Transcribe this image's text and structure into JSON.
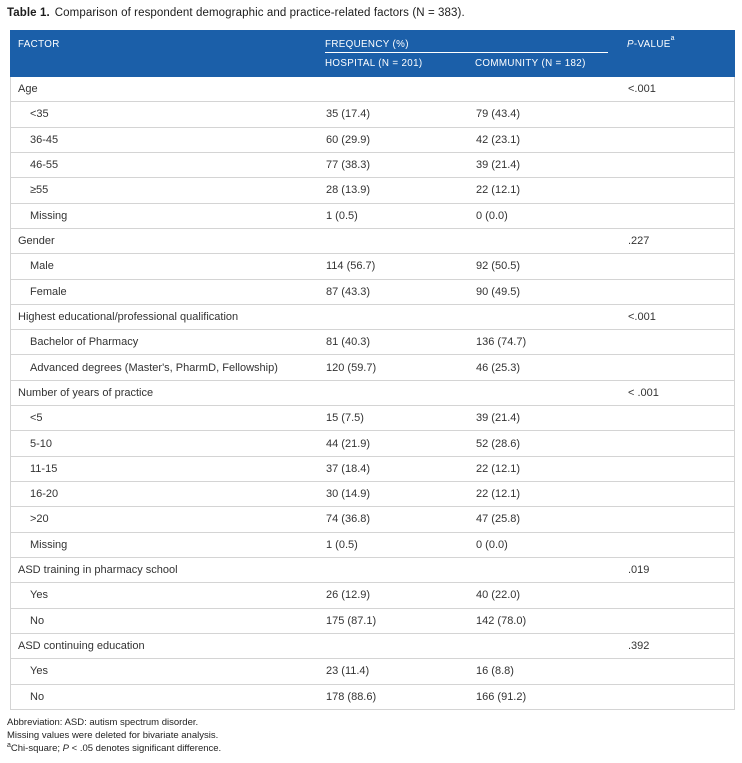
{
  "caption": {
    "label": "Table 1.",
    "text": "Comparison of respondent demographic and practice-related factors (N = 383)."
  },
  "table": {
    "header": {
      "factor": "FACTOR",
      "frequency_group": "FREQUENCY (%)",
      "hospital": "HOSPITAL (N = 201)",
      "community": "COMMUNITY (N = 182)",
      "pvalue_italic": "P",
      "pvalue_rest": "-VALUE",
      "pvalue_sup": "a"
    },
    "rows": [
      {
        "factor": "Age",
        "indent": false,
        "hospital": "",
        "community": "",
        "pvalue": "<.001"
      },
      {
        "factor": "<35",
        "indent": true,
        "hospital": "35 (17.4)",
        "community": "79 (43.4)",
        "pvalue": ""
      },
      {
        "factor": "36-45",
        "indent": true,
        "hospital": "60 (29.9)",
        "community": "42 (23.1)",
        "pvalue": ""
      },
      {
        "factor": "46-55",
        "indent": true,
        "hospital": "77 (38.3)",
        "community": "39 (21.4)",
        "pvalue": ""
      },
      {
        "factor": "≥55",
        "indent": true,
        "hospital": "28 (13.9)",
        "community": "22 (12.1)",
        "pvalue": ""
      },
      {
        "factor": "Missing",
        "indent": true,
        "hospital": "1 (0.5)",
        "community": "0 (0.0)",
        "pvalue": ""
      },
      {
        "factor": "Gender",
        "indent": false,
        "hospital": "",
        "community": "",
        "pvalue": ".227"
      },
      {
        "factor": "Male",
        "indent": true,
        "hospital": "114 (56.7)",
        "community": "92 (50.5)",
        "pvalue": ""
      },
      {
        "factor": "Female",
        "indent": true,
        "hospital": "87 (43.3)",
        "community": "90 (49.5)",
        "pvalue": ""
      },
      {
        "factor": "Highest educational/professional qualification",
        "indent": false,
        "hospital": "",
        "community": "",
        "pvalue": "<.001"
      },
      {
        "factor": "Bachelor of Pharmacy",
        "indent": true,
        "hospital": "81 (40.3)",
        "community": "136 (74.7)",
        "pvalue": ""
      },
      {
        "factor": "Advanced degrees (Master's, PharmD, Fellowship)",
        "indent": true,
        "hospital": "120 (59.7)",
        "community": "46 (25.3)",
        "pvalue": ""
      },
      {
        "factor": "Number of years of practice",
        "indent": false,
        "hospital": "",
        "community": "",
        "pvalue": "< .001"
      },
      {
        "factor": "<5",
        "indent": true,
        "hospital": "15 (7.5)",
        "community": "39 (21.4)",
        "pvalue": ""
      },
      {
        "factor": "5-10",
        "indent": true,
        "hospital": "44 (21.9)",
        "community": "52 (28.6)",
        "pvalue": ""
      },
      {
        "factor": "11-15",
        "indent": true,
        "hospital": "37 (18.4)",
        "community": "22 (12.1)",
        "pvalue": ""
      },
      {
        "factor": "16-20",
        "indent": true,
        "hospital": "30 (14.9)",
        "community": "22 (12.1)",
        "pvalue": ""
      },
      {
        "factor": ">20",
        "indent": true,
        "hospital": "74 (36.8)",
        "community": "47 (25.8)",
        "pvalue": ""
      },
      {
        "factor": "Missing",
        "indent": true,
        "hospital": "1 (0.5)",
        "community": "0 (0.0)",
        "pvalue": ""
      },
      {
        "factor": "ASD training in pharmacy school",
        "indent": false,
        "hospital": "",
        "community": "",
        "pvalue": ".019"
      },
      {
        "factor": "Yes",
        "indent": true,
        "hospital": "26 (12.9)",
        "community": "40 (22.0)",
        "pvalue": ""
      },
      {
        "factor": "No",
        "indent": true,
        "hospital": "175 (87.1)",
        "community": "142 (78.0)",
        "pvalue": ""
      },
      {
        "factor": "ASD continuing education",
        "indent": false,
        "hospital": "",
        "community": "",
        "pvalue": ".392"
      },
      {
        "factor": "Yes",
        "indent": true,
        "hospital": "23 (11.4)",
        "community": "16 (8.8)",
        "pvalue": ""
      },
      {
        "factor": "No",
        "indent": true,
        "hospital": "178 (88.6)",
        "community": "166 (91.2)",
        "pvalue": ""
      }
    ]
  },
  "footnotes": {
    "line1": "Abbreviation: ASD: autism spectrum disorder.",
    "line2": "Missing values were deleted for bivariate analysis.",
    "line3_sup": "a",
    "line3_pre": "Chi-square; ",
    "line3_italic": "P",
    "line3_post": " < .05 denotes significant difference."
  },
  "colors": {
    "header_bg": "#1b5fa9",
    "header_text": "#ffffff",
    "row_border": "#d4d4d4",
    "body_text": "#333333"
  }
}
